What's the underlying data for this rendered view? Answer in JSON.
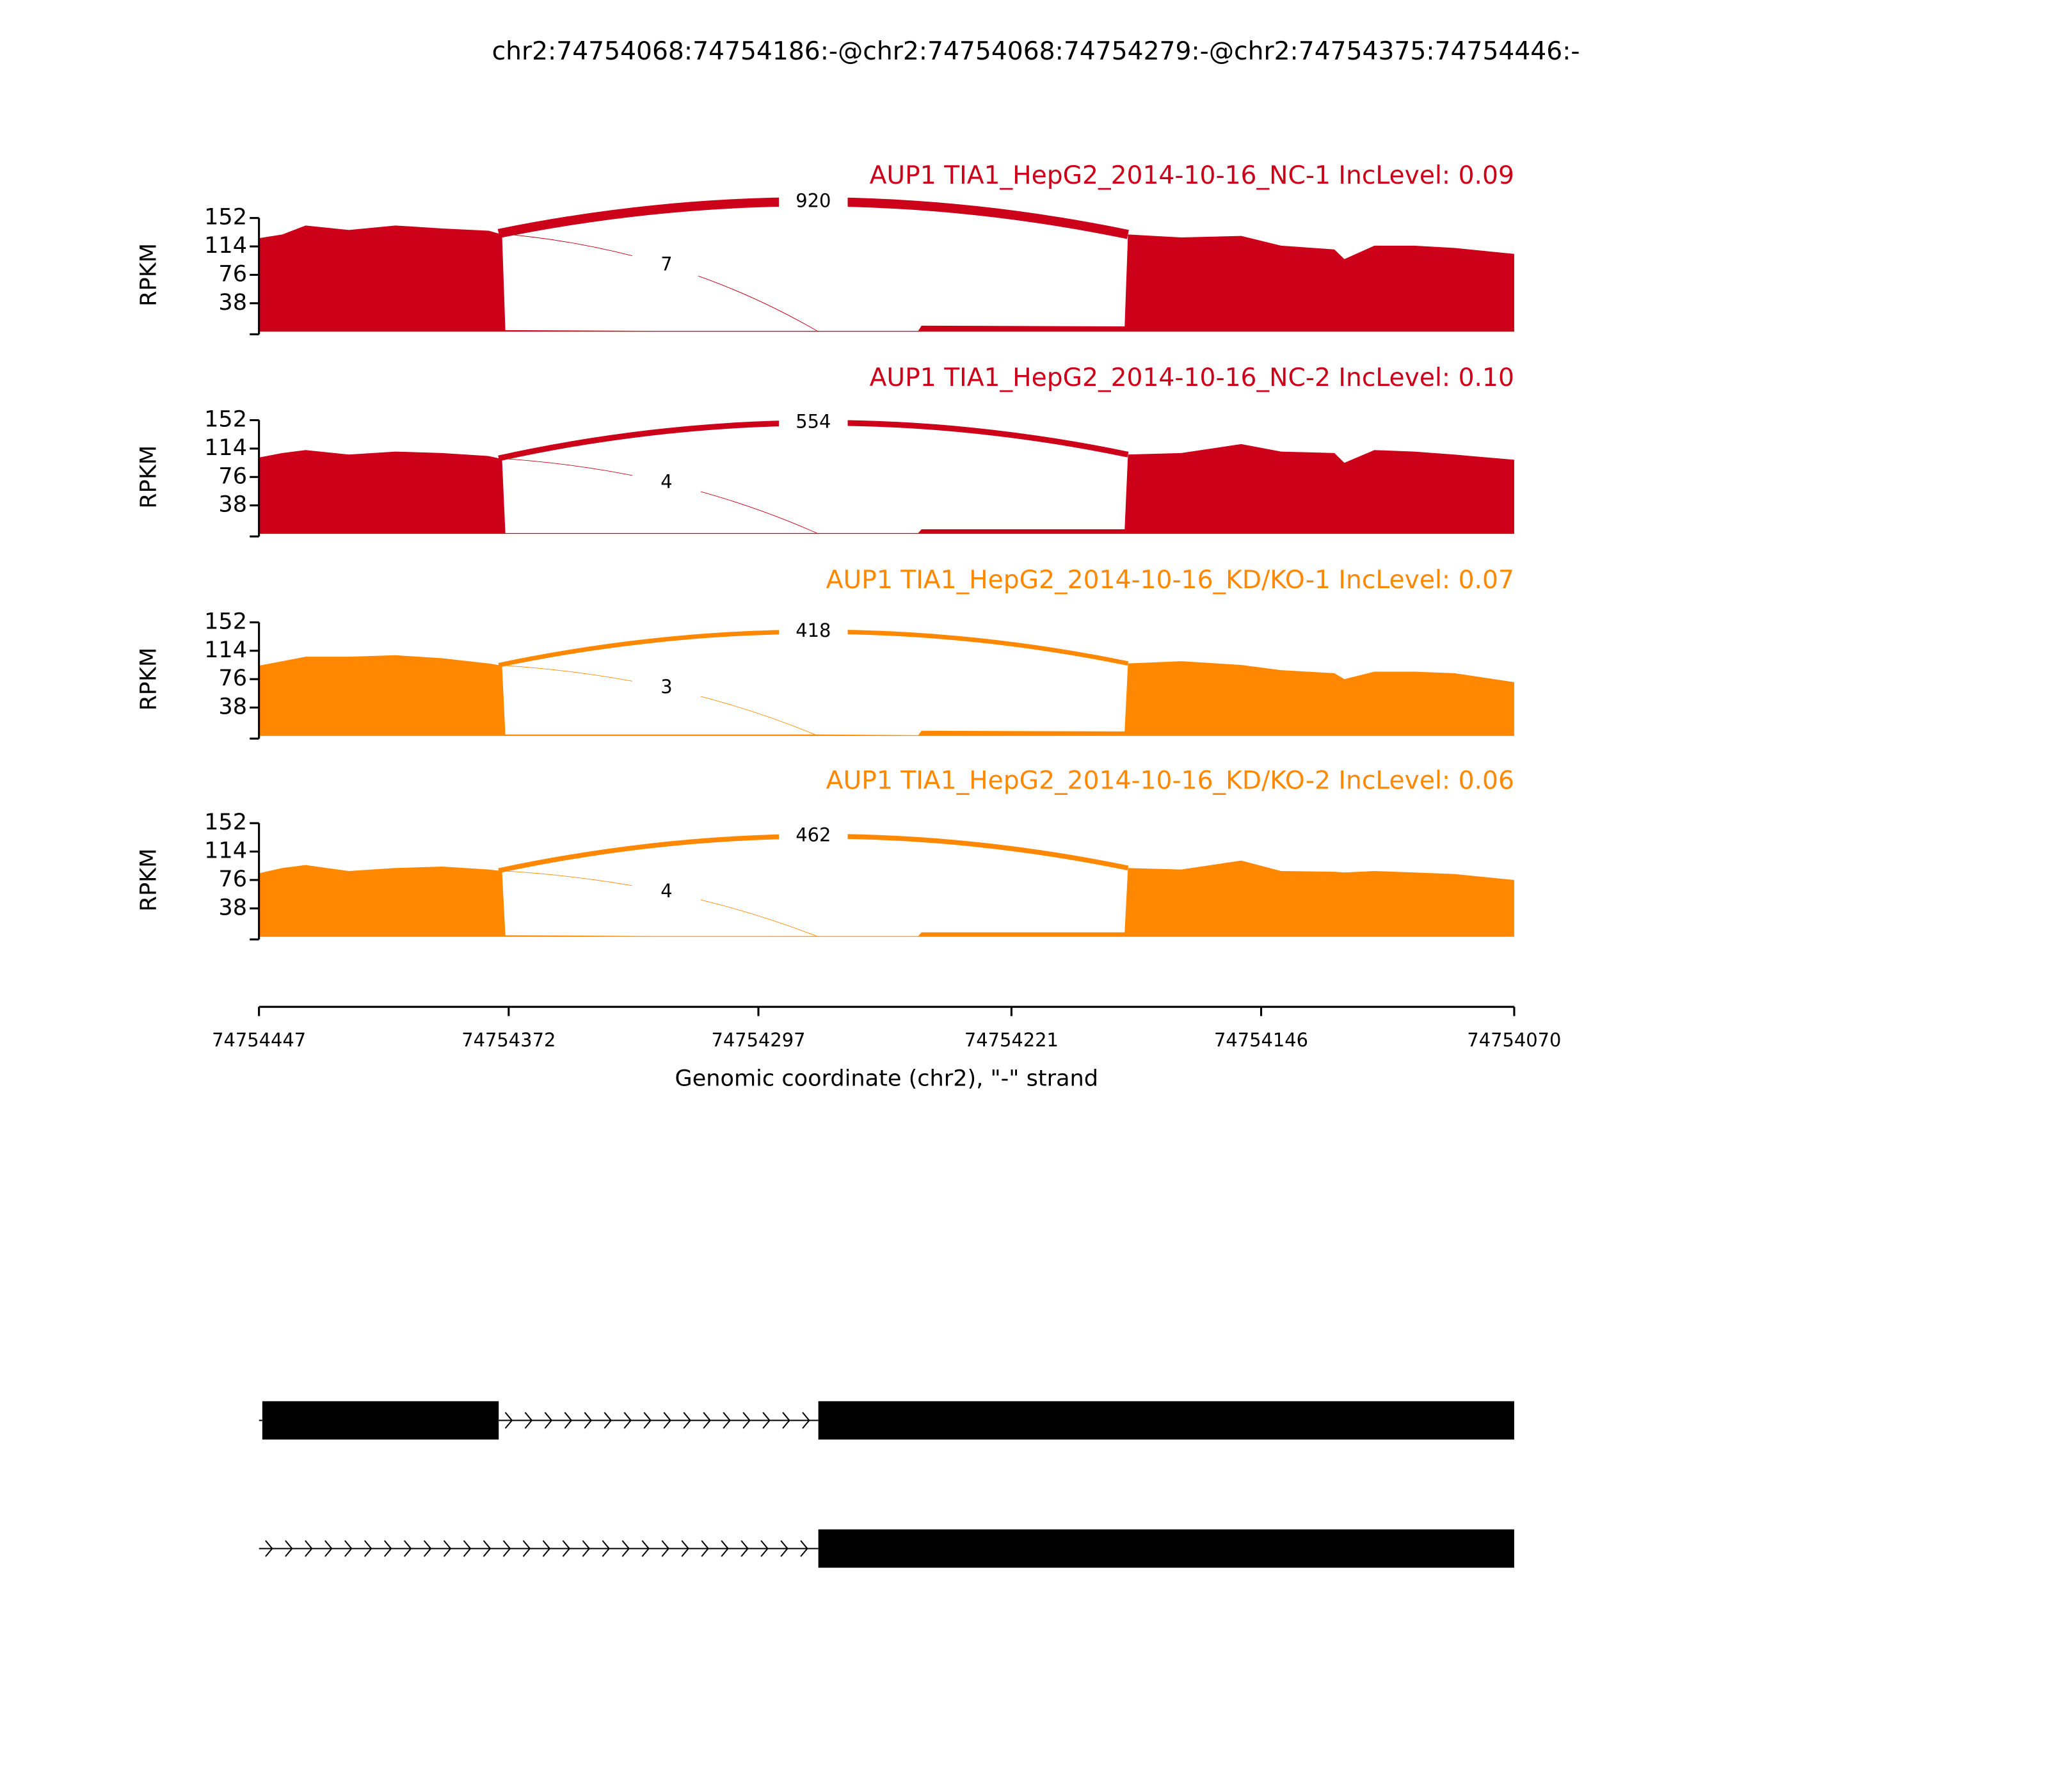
{
  "title": "chr2:74754068:74754186:-@chr2:74754068:74754279:-@chr2:74754375:74754446:-",
  "x_axis": {
    "label": "Genomic coordinate (chr2), \"-\" strand",
    "xlim": [
      74754447,
      74754070
    ],
    "xticks": [
      74754447,
      74754372,
      74754297,
      74754221,
      74754146,
      74754070
    ]
  },
  "chart_data": [
    {
      "type": "area",
      "title": "AUP1 TIA1_HepG2_2014-10-16_NC-1 IncLevel: 0.09",
      "y_label": "RPKM",
      "color": "#cc0018",
      "ylim": [
        0,
        152
      ],
      "yticks": [
        38,
        76,
        114,
        152
      ],
      "x": [
        74754447,
        74754440,
        74754433,
        74754420,
        74754406,
        74754392,
        74754378,
        74754374,
        74754373,
        74754330,
        74754279,
        74754249,
        74754248,
        74754187,
        74754186,
        74754170,
        74754152,
        74754140,
        74754124,
        74754121,
        74754112,
        74754100,
        74754088,
        74754070
      ],
      "values": [
        125,
        130,
        142,
        136,
        142,
        138,
        135,
        130,
        2,
        1,
        1,
        1,
        8,
        7,
        130,
        126,
        128,
        115,
        110,
        97,
        115,
        115,
        112,
        104
      ],
      "junctions": [
        {
          "start": 74754375,
          "end": 74754186,
          "value": 920
        },
        {
          "start": 74754375,
          "end": 74754279,
          "value": 7
        }
      ]
    },
    {
      "type": "area",
      "title": "AUP1 TIA1_HepG2_2014-10-16_NC-2 IncLevel: 0.10",
      "y_label": "RPKM",
      "color": "#cc0018",
      "ylim": [
        0,
        152
      ],
      "yticks": [
        38,
        76,
        114,
        152
      ],
      "x": [
        74754447,
        74754440,
        74754433,
        74754420,
        74754406,
        74754392,
        74754378,
        74754374,
        74754373,
        74754330,
        74754279,
        74754249,
        74754248,
        74754187,
        74754186,
        74754170,
        74754152,
        74754140,
        74754124,
        74754121,
        74754112,
        74754100,
        74754088,
        74754070
      ],
      "values": [
        102,
        108,
        112,
        106,
        110,
        108,
        104,
        100,
        1,
        1,
        1,
        1,
        6,
        6,
        106,
        108,
        120,
        110,
        108,
        95,
        112,
        110,
        106,
        99
      ],
      "junctions": [
        {
          "start": 74754375,
          "end": 74754186,
          "value": 554
        },
        {
          "start": 74754375,
          "end": 74754279,
          "value": 4
        }
      ]
    },
    {
      "type": "area",
      "title": "AUP1 TIA1_HepG2_2014-10-16_KD/KO-1 IncLevel: 0.07",
      "y_label": "RPKM",
      "color": "#ff8800",
      "ylim": [
        0,
        152
      ],
      "yticks": [
        38,
        76,
        114,
        152
      ],
      "x": [
        74754447,
        74754440,
        74754433,
        74754420,
        74754406,
        74754392,
        74754378,
        74754374,
        74754373,
        74754330,
        74754279,
        74754249,
        74754248,
        74754187,
        74754186,
        74754170,
        74754152,
        74754140,
        74754124,
        74754121,
        74754112,
        74754100,
        74754088,
        74754070
      ],
      "values": [
        94,
        100,
        106,
        106,
        108,
        104,
        97,
        94,
        2,
        2,
        2,
        1,
        7,
        6,
        97,
        100,
        95,
        88,
        84,
        76,
        86,
        86,
        84,
        72
      ],
      "junctions": [
        {
          "start": 74754375,
          "end": 74754186,
          "value": 418
        },
        {
          "start": 74754375,
          "end": 74754279,
          "value": 3
        }
      ]
    },
    {
      "type": "area",
      "title": "AUP1 TIA1_HepG2_2014-10-16_KD/KO-2 IncLevel: 0.06",
      "y_label": "RPKM",
      "color": "#ff8800",
      "ylim": [
        0,
        152
      ],
      "yticks": [
        38,
        76,
        114,
        152
      ],
      "x": [
        74754447,
        74754440,
        74754433,
        74754420,
        74754406,
        74754392,
        74754378,
        74754374,
        74754373,
        74754330,
        74754279,
        74754249,
        74754248,
        74754187,
        74754186,
        74754170,
        74754152,
        74754140,
        74754124,
        74754121,
        74754112,
        74754100,
        74754088,
        74754070
      ],
      "values": [
        85,
        92,
        96,
        88,
        92,
        94,
        90,
        88,
        2,
        1,
        1,
        1,
        6,
        6,
        92,
        90,
        102,
        88,
        87,
        86,
        88,
        86,
        84,
        76
      ],
      "junctions": [
        {
          "start": 74754375,
          "end": 74754186,
          "value": 462
        },
        {
          "start": 74754375,
          "end": 74754279,
          "value": 4
        }
      ]
    }
  ],
  "gene_model": {
    "transcripts": [
      {
        "exons": [
          [
            74754446,
            74754375
          ],
          [
            74754279,
            74754068
          ]
        ]
      },
      {
        "exons": [
          [
            74754279,
            74754068
          ]
        ]
      }
    ]
  }
}
